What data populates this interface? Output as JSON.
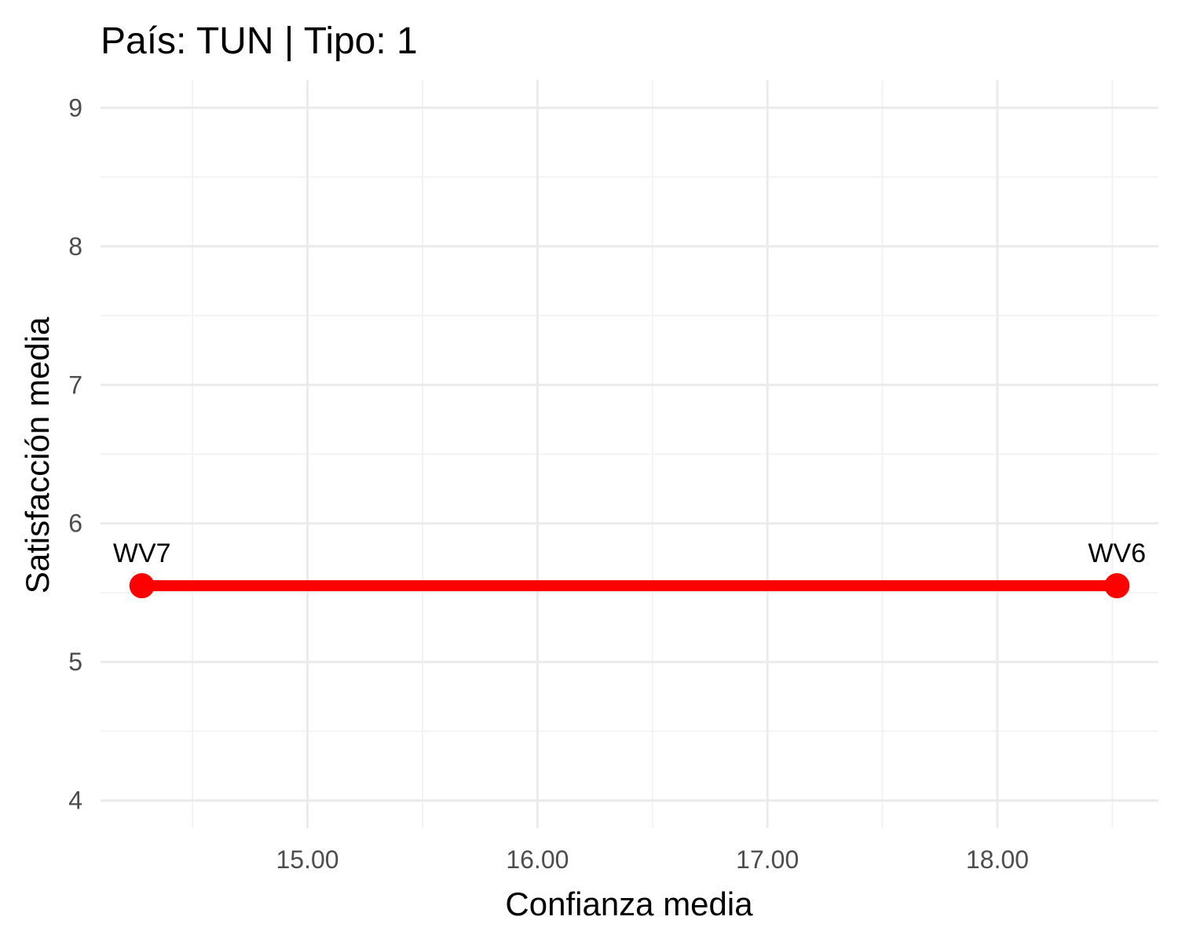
{
  "chart_data": {
    "type": "line",
    "title": "País: TUN | Tipo: 1",
    "xlabel": "Confianza media",
    "ylabel": "Satisfacción media",
    "xlim": [
      14.1,
      18.7
    ],
    "ylim": [
      3.8,
      9.2
    ],
    "x_ticks": [
      15,
      16,
      17,
      18
    ],
    "x_tick_labels": [
      "15.00",
      "16.00",
      "17.00",
      "18.00"
    ],
    "x_minor_ticks": [
      14.5,
      15.5,
      16.5,
      17.5,
      18.5
    ],
    "y_ticks": [
      4,
      5,
      6,
      7,
      8,
      9
    ],
    "y_tick_labels": [
      "4",
      "5",
      "6",
      "7",
      "8",
      "9"
    ],
    "y_minor_ticks": [
      4.5,
      5.5,
      6.5,
      7.5,
      8.5
    ],
    "grid": true,
    "series": [
      {
        "color": "#ff0000",
        "points": [
          {
            "label": "WV7",
            "x": 14.28,
            "y": 5.55
          },
          {
            "label": "WV6",
            "x": 18.52,
            "y": 5.55
          }
        ]
      }
    ]
  }
}
